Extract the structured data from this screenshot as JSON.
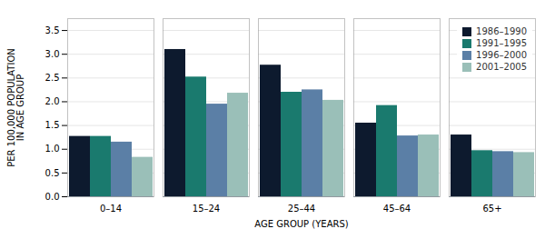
{
  "chart_data": {
    "type": "bar",
    "categories": [
      "0–14",
      "15–24",
      "25–44",
      "45–64",
      "65+"
    ],
    "series": [
      {
        "name": "1986–1990",
        "color": "#0d1a2e",
        "values": [
          1.27,
          3.1,
          2.77,
          1.55,
          1.3
        ]
      },
      {
        "name": "1991–1995",
        "color": "#1a7a6e",
        "values": [
          1.27,
          2.52,
          2.2,
          1.92,
          0.97
        ]
      },
      {
        "name": "1996–2000",
        "color": "#5b7fa6",
        "values": [
          1.15,
          1.95,
          2.25,
          1.28,
          0.95
        ]
      },
      {
        "name": "2001–2005",
        "color": "#9abfb8",
        "values": [
          0.83,
          2.18,
          2.03,
          1.3,
          0.93
        ]
      }
    ],
    "xlabel": "AGE GROUP (YEARS)",
    "ylabel": "PER 100,000 POPULATION\nIN AGE GROUP",
    "ylim": [
      0.0,
      3.75
    ],
    "yticks": [
      {
        "value": 0,
        "label": "0.0"
      },
      0.5,
      {
        "value": 1,
        "label": "1.0"
      },
      1.5,
      {
        "value": 2,
        "label": "2.0"
      },
      2.5,
      {
        "value": 3,
        "label": "3.0"
      },
      3.5
    ],
    "grid": true,
    "legend": "upper right"
  }
}
